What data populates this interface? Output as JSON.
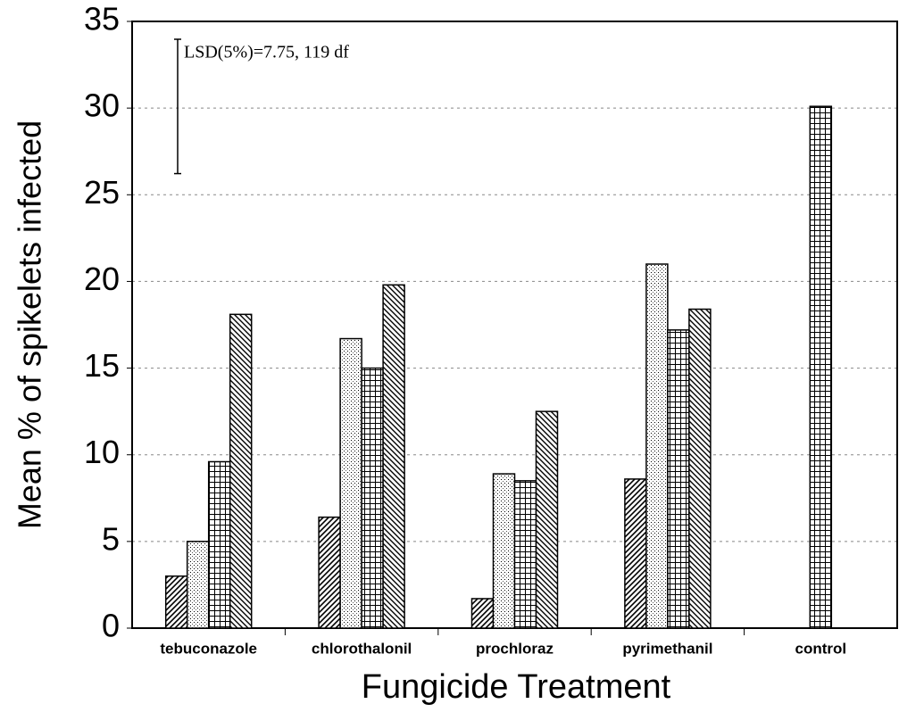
{
  "chart_data": {
    "type": "bar",
    "y_label": "Mean % of spikelets infected",
    "x_label": "Fungicide Treatment",
    "annotation": "LSD(5%)=7.75, 119 df",
    "lsd": 7.75,
    "categories": [
      "tebuconazole",
      "chlorothalonil",
      "prochloraz",
      "pyrimethanil",
      "control"
    ],
    "series": [
      {
        "pattern": "forward-hatch",
        "values": [
          3.0,
          6.4,
          1.7,
          8.6,
          null
        ]
      },
      {
        "pattern": "dots",
        "values": [
          5.0,
          16.7,
          8.9,
          21.0,
          null
        ]
      },
      {
        "pattern": "grid",
        "values": [
          9.6,
          15.0,
          8.5,
          17.2,
          30.1
        ]
      },
      {
        "pattern": "back-hatch",
        "values": [
          18.1,
          19.8,
          12.5,
          18.4,
          null
        ]
      }
    ],
    "ylim": [
      0,
      35
    ],
    "yticks": [
      0,
      5,
      10,
      15,
      20,
      25,
      30,
      35
    ],
    "grid": true
  }
}
